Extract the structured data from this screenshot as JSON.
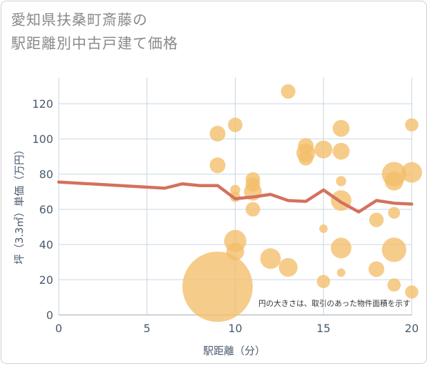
{
  "title_line1": "愛知県扶桑町斎藤の",
  "title_line2": "駅距離別中古戸建て価格",
  "note": "円の大きさは、取引のあった物件面積を示す",
  "colors": {
    "bubble": "#f3be6a",
    "line": "#d4715c",
    "grid": "#c8d6e2",
    "axis_text": "#4a5a6e"
  },
  "chart_data": {
    "type": "scatter",
    "title": "愛知県扶桑町斎藤の駅距離別中古戸建て価格",
    "xlabel": "駅距離（分）",
    "ylabel": "坪（3.3㎡）単価（万円）",
    "xlim": [
      0,
      20
    ],
    "ylim": [
      0,
      135
    ],
    "xticks": [
      0,
      5,
      10,
      15,
      20
    ],
    "yticks": [
      0,
      20,
      40,
      60,
      80,
      100,
      120
    ],
    "grid": true,
    "series": [
      {
        "type": "bubble",
        "points": [
          {
            "x": 9,
            "y": 16,
            "size": 140
          },
          {
            "x": 9,
            "y": 103,
            "size": 7
          },
          {
            "x": 9,
            "y": 85,
            "size": 7
          },
          {
            "x": 10,
            "y": 108,
            "size": 6
          },
          {
            "x": 10,
            "y": 71,
            "size": 3
          },
          {
            "x": 10,
            "y": 67,
            "size": 3
          },
          {
            "x": 10,
            "y": 42,
            "size": 14
          },
          {
            "x": 10,
            "y": 36,
            "size": 9
          },
          {
            "x": 11,
            "y": 77,
            "size": 6
          },
          {
            "x": 11,
            "y": 74,
            "size": 6
          },
          {
            "x": 11,
            "y": 70,
            "size": 9
          },
          {
            "x": 11,
            "y": 60,
            "size": 6
          },
          {
            "x": 12,
            "y": 32,
            "size": 12
          },
          {
            "x": 13,
            "y": 127,
            "size": 6
          },
          {
            "x": 13,
            "y": 27,
            "size": 10
          },
          {
            "x": 14,
            "y": 96,
            "size": 7
          },
          {
            "x": 14,
            "y": 92,
            "size": 10
          },
          {
            "x": 14,
            "y": 89,
            "size": 6
          },
          {
            "x": 15,
            "y": 94,
            "size": 9
          },
          {
            "x": 15,
            "y": 49,
            "size": 2
          },
          {
            "x": 15,
            "y": 19,
            "size": 5
          },
          {
            "x": 16,
            "y": 106,
            "size": 8
          },
          {
            "x": 16,
            "y": 93,
            "size": 8
          },
          {
            "x": 16,
            "y": 76,
            "size": 3
          },
          {
            "x": 16,
            "y": 65,
            "size": 12
          },
          {
            "x": 16,
            "y": 38,
            "size": 12
          },
          {
            "x": 16,
            "y": 24,
            "size": 2
          },
          {
            "x": 18,
            "y": 54,
            "size": 6
          },
          {
            "x": 18,
            "y": 26,
            "size": 7
          },
          {
            "x": 19,
            "y": 80,
            "size": 17
          },
          {
            "x": 19,
            "y": 76,
            "size": 10
          },
          {
            "x": 19,
            "y": 58,
            "size": 4
          },
          {
            "x": 19,
            "y": 37,
            "size": 17
          },
          {
            "x": 19,
            "y": 17,
            "size": 5
          },
          {
            "x": 20,
            "y": 108,
            "size": 5
          },
          {
            "x": 20,
            "y": 81,
            "size": 12
          },
          {
            "x": 20,
            "y": 13,
            "size": 5
          }
        ]
      },
      {
        "type": "line",
        "x": [
          0,
          6,
          7,
          8,
          9,
          10,
          11,
          12,
          13,
          14,
          15,
          16,
          17,
          18,
          19,
          20
        ],
        "y": [
          75.5,
          72,
          74.5,
          73.5,
          73.5,
          66,
          67,
          68.5,
          65,
          64.5,
          71,
          64,
          58.5,
          65,
          63.5,
          63
        ]
      }
    ]
  }
}
